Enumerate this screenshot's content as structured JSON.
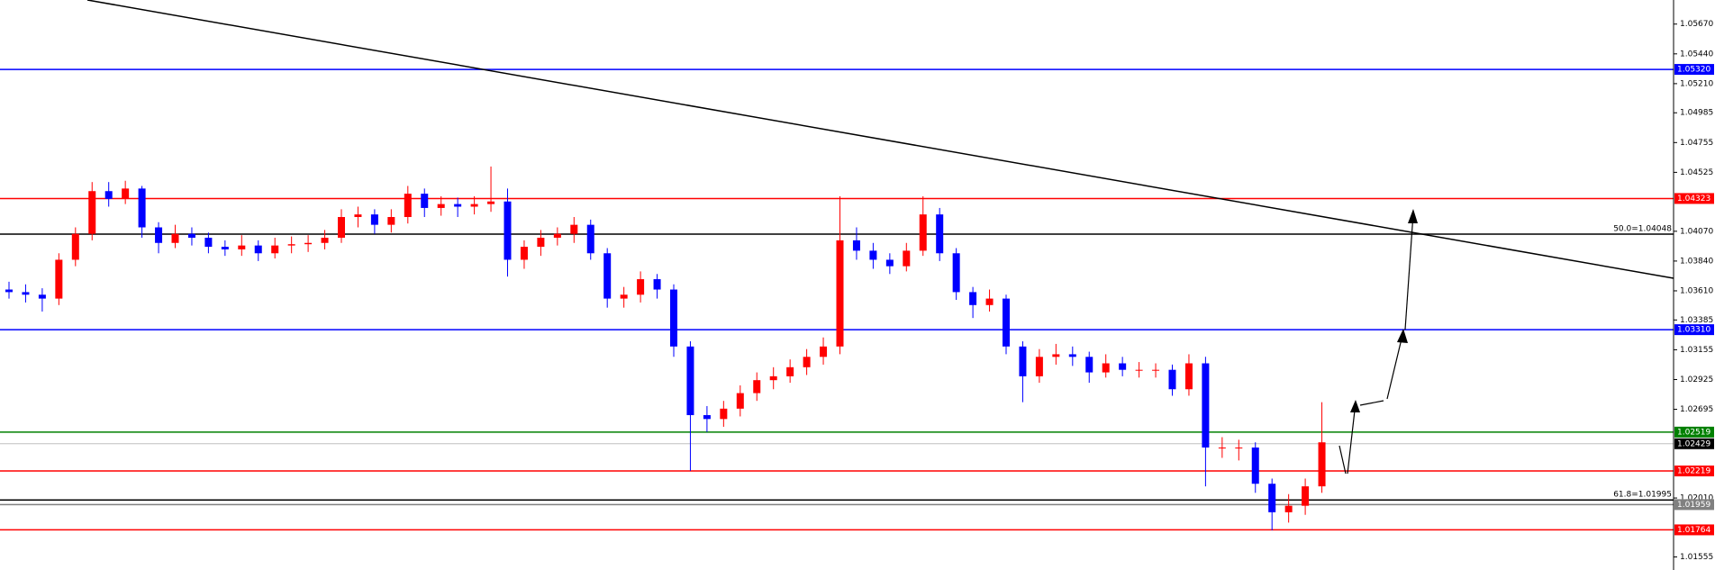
{
  "chart_data": {
    "type": "candlestick",
    "up_color": "#ff0000",
    "down_color": "#0000ff",
    "ylim": [
      1.01454,
      1.05856
    ],
    "yticks": [
      {
        "value": 1.0567,
        "label": "1.05670"
      },
      {
        "value": 1.0544,
        "label": "1.05440"
      },
      {
        "value": 1.0521,
        "label": "1.05210"
      },
      {
        "value": 1.04985,
        "label": "1.04985"
      },
      {
        "value": 1.04755,
        "label": "1.04755"
      },
      {
        "value": 1.04525,
        "label": "1.04525"
      },
      {
        "value": 1.0407,
        "label": "1.04070"
      },
      {
        "value": 1.0384,
        "label": "1.03840"
      },
      {
        "value": 1.0361,
        "label": "1.03610"
      },
      {
        "value": 1.03385,
        "label": "1.03385"
      },
      {
        "value": 1.03155,
        "label": "1.03155"
      },
      {
        "value": 1.02925,
        "label": "1.02925"
      },
      {
        "value": 1.02695,
        "label": "1.02695"
      },
      {
        "value": 1.0201,
        "label": "1.02010"
      },
      {
        "value": 1.01555,
        "label": "1.01555"
      }
    ],
    "levels": [
      {
        "value": 1.0532,
        "label": "1.05320",
        "color": "#0000ff"
      },
      {
        "value": 1.04323,
        "label": "1.04323",
        "color": "#ff0000"
      },
      {
        "value": 1.04048,
        "fib_label": "50.0=1.04048",
        "color": "#000000"
      },
      {
        "value": 1.0331,
        "label": "1.03310",
        "color": "#0000ff"
      },
      {
        "value": 1.02519,
        "label": "1.02519",
        "color": "#008000"
      },
      {
        "value": 1.02429,
        "label": "1.02429",
        "color": "#c0c0c0"
      },
      {
        "value": 1.02219,
        "label": "1.02219",
        "color": "#ff0000"
      },
      {
        "value": 1.01995,
        "fib_label": "61.8=1.01995",
        "color": "#000000"
      },
      {
        "value": 1.01959,
        "label": "1.01959",
        "color": "#808080"
      },
      {
        "value": 1.01764,
        "label": "1.01764",
        "color": "#ff0000"
      }
    ],
    "ohlc": [
      [
        1.0362,
        1.0368,
        1.0355,
        1.036
      ],
      [
        1.036,
        1.0366,
        1.0352,
        1.0358
      ],
      [
        1.0358,
        1.0363,
        1.0345,
        1.0355
      ],
      [
        1.0355,
        1.039,
        1.035,
        1.0385
      ],
      [
        1.0385,
        1.041,
        1.038,
        1.0405
      ],
      [
        1.0405,
        1.0445,
        1.04,
        1.0438
      ],
      [
        1.0438,
        1.0445,
        1.0426,
        1.0432
      ],
      [
        1.0432,
        1.0446,
        1.0428,
        1.044
      ],
      [
        1.044,
        1.0442,
        1.0402,
        1.041
      ],
      [
        1.041,
        1.0414,
        1.039,
        1.0398
      ],
      [
        1.0398,
        1.0412,
        1.0394,
        1.0405
      ],
      [
        1.0405,
        1.041,
        1.0396,
        1.0402
      ],
      [
        1.0402,
        1.0406,
        1.039,
        1.0395
      ],
      [
        1.0395,
        1.04,
        1.0388,
        1.0393
      ],
      [
        1.0393,
        1.0404,
        1.0388,
        1.0396
      ],
      [
        1.0396,
        1.04,
        1.0384,
        1.039
      ],
      [
        1.039,
        1.0402,
        1.0386,
        1.0396
      ],
      [
        1.0396,
        1.0403,
        1.039,
        1.0397
      ],
      [
        1.0397,
        1.0404,
        1.0391,
        1.0398
      ],
      [
        1.0398,
        1.0408,
        1.0393,
        1.0402
      ],
      [
        1.0402,
        1.0424,
        1.0398,
        1.0418
      ],
      [
        1.0418,
        1.0426,
        1.041,
        1.042
      ],
      [
        1.042,
        1.0424,
        1.0405,
        1.0412
      ],
      [
        1.0412,
        1.0424,
        1.0406,
        1.0418
      ],
      [
        1.0418,
        1.0442,
        1.0413,
        1.0436
      ],
      [
        1.0436,
        1.044,
        1.0418,
        1.0425
      ],
      [
        1.0425,
        1.0434,
        1.0419,
        1.0428
      ],
      [
        1.0428,
        1.0433,
        1.0418,
        1.0426
      ],
      [
        1.0426,
        1.0434,
        1.042,
        1.0428
      ],
      [
        1.0428,
        1.0457,
        1.0422,
        1.043
      ],
      [
        1.043,
        1.044,
        1.0372,
        1.0385
      ],
      [
        1.0385,
        1.04,
        1.0378,
        1.0395
      ],
      [
        1.0395,
        1.0408,
        1.0388,
        1.0402
      ],
      [
        1.0402,
        1.041,
        1.0396,
        1.0405
      ],
      [
        1.0405,
        1.0418,
        1.0398,
        1.0412
      ],
      [
        1.0412,
        1.0416,
        1.0385,
        1.039
      ],
      [
        1.039,
        1.0394,
        1.0348,
        1.0355
      ],
      [
        1.0355,
        1.0364,
        1.0348,
        1.0358
      ],
      [
        1.0358,
        1.0376,
        1.0352,
        1.037
      ],
      [
        1.037,
        1.0374,
        1.0355,
        1.0362
      ],
      [
        1.0362,
        1.0366,
        1.031,
        1.0318
      ],
      [
        1.0318,
        1.0322,
        1.0222,
        1.0265
      ],
      [
        1.0265,
        1.0272,
        1.0252,
        1.0262
      ],
      [
        1.0262,
        1.0276,
        1.0256,
        1.027
      ],
      [
        1.027,
        1.0288,
        1.0264,
        1.0282
      ],
      [
        1.0282,
        1.0298,
        1.0276,
        1.0292
      ],
      [
        1.0292,
        1.0302,
        1.0285,
        1.0295
      ],
      [
        1.0295,
        1.0308,
        1.029,
        1.0302
      ],
      [
        1.0302,
        1.0316,
        1.0296,
        1.031
      ],
      [
        1.031,
        1.0325,
        1.0304,
        1.0318
      ],
      [
        1.0318,
        1.0434,
        1.0312,
        1.04
      ],
      [
        1.04,
        1.041,
        1.0385,
        1.0392
      ],
      [
        1.0392,
        1.0398,
        1.0378,
        1.0385
      ],
      [
        1.0385,
        1.039,
        1.0374,
        1.038
      ],
      [
        1.038,
        1.0398,
        1.0376,
        1.0392
      ],
      [
        1.0392,
        1.0434,
        1.0388,
        1.042
      ],
      [
        1.042,
        1.0425,
        1.0384,
        1.039
      ],
      [
        1.039,
        1.0394,
        1.0354,
        1.036
      ],
      [
        1.036,
        1.0364,
        1.034,
        1.035
      ],
      [
        1.035,
        1.0362,
        1.0345,
        1.0355
      ],
      [
        1.0355,
        1.0358,
        1.0312,
        1.0318
      ],
      [
        1.0318,
        1.0322,
        1.0275,
        1.0295
      ],
      [
        1.0295,
        1.0316,
        1.029,
        1.031
      ],
      [
        1.031,
        1.032,
        1.0304,
        1.0312
      ],
      [
        1.0312,
        1.0318,
        1.0303,
        1.031
      ],
      [
        1.031,
        1.0314,
        1.029,
        1.0298
      ],
      [
        1.0298,
        1.0312,
        1.0294,
        1.0305
      ],
      [
        1.0305,
        1.031,
        1.0295,
        1.03
      ],
      [
        1.03,
        1.0306,
        1.0294,
        1.03
      ],
      [
        1.03,
        1.0305,
        1.0294,
        1.03
      ],
      [
        1.03,
        1.0304,
        1.028,
        1.0285
      ],
      [
        1.0285,
        1.0312,
        1.028,
        1.0305
      ],
      [
        1.0305,
        1.031,
        1.021,
        1.024
      ],
      [
        1.024,
        1.0248,
        1.0232,
        1.024
      ],
      [
        1.024,
        1.0246,
        1.023,
        1.024
      ],
      [
        1.024,
        1.0244,
        1.0205,
        1.0212
      ],
      [
        1.0212,
        1.0216,
        1.0176,
        1.019
      ],
      [
        1.019,
        1.0204,
        1.0182,
        1.0195
      ],
      [
        1.0195,
        1.0216,
        1.0188,
        1.021
      ],
      [
        1.021,
        1.0275,
        1.0205,
        1.0244
      ]
    ]
  }
}
